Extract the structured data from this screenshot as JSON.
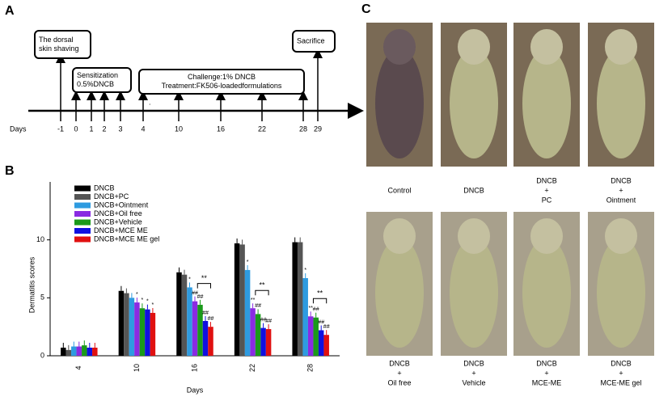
{
  "panels": {
    "a": "A",
    "b": "B",
    "c": "C"
  },
  "timeline": {
    "axis_label": "Days",
    "days": [
      "-1",
      "0",
      "1",
      "2",
      "3",
      "4",
      "10",
      "16",
      "22",
      "28",
      "29"
    ],
    "boxes": [
      [
        "The dorsal",
        "skin shaving"
      ],
      [
        "Sensitization",
        "0.5%DNCB"
      ],
      [
        "Challenge:1% DNCB",
        "Treatment:FK506-loadedformulations"
      ],
      [
        "Sacrifice"
      ]
    ],
    "dot": "."
  },
  "chart_data": {
    "type": "bar",
    "xlabel": "Days",
    "ylabel": "Dermatitis scores",
    "categories": [
      "4",
      "10",
      "16",
      "22",
      "28"
    ],
    "ylim": [
      0,
      15
    ],
    "yticks": [
      0,
      5,
      10
    ],
    "series": [
      {
        "name": "DNCB",
        "color": "#000000",
        "values": [
          0.7,
          5.6,
          7.2,
          9.7,
          9.8
        ],
        "marks": [
          null,
          null,
          null,
          null,
          null
        ]
      },
      {
        "name": "DNCB+PC",
        "color": "#555555",
        "values": [
          0.5,
          5.4,
          7.0,
          9.6,
          9.8
        ],
        "marks": [
          null,
          null,
          null,
          null,
          null
        ]
      },
      {
        "name": "DNCB+Ointment",
        "color": "#2e9be0",
        "values": [
          0.8,
          5.0,
          5.9,
          7.4,
          6.7
        ],
        "marks": [
          null,
          null,
          "*",
          "*",
          "*"
        ]
      },
      {
        "name": "DNCB+Oil free",
        "color": "#8a2be2",
        "values": [
          0.8,
          4.6,
          4.7,
          4.1,
          3.4
        ],
        "marks": [
          null,
          "*",
          "##",
          "**",
          "**"
        ]
      },
      {
        "name": "DNCB+Vehicle",
        "color": "#1a9a1a",
        "values": [
          0.9,
          4.1,
          4.4,
          3.6,
          3.3
        ],
        "marks": [
          null,
          "*",
          "##",
          "##",
          "##"
        ]
      },
      {
        "name": "DNCB+MCE ME",
        "color": "#1010e0",
        "values": [
          0.7,
          4.0,
          3.0,
          2.4,
          2.2
        ],
        "marks": [
          null,
          "*",
          "##",
          "##",
          "##"
        ]
      },
      {
        "name": "DNCB+MCE ME gel",
        "color": "#e01010",
        "values": [
          0.7,
          3.7,
          2.5,
          2.3,
          1.8
        ],
        "marks": [
          null,
          "*",
          "##",
          "##",
          "##"
        ]
      }
    ],
    "brackets": {
      "categories": [
        2,
        3,
        4
      ],
      "label": "**"
    }
  },
  "photos": [
    [
      "Control"
    ],
    [
      "DNCB"
    ],
    [
      "DNCB",
      "+",
      "PC"
    ],
    [
      "DNCB",
      "+",
      "Ointment"
    ],
    [
      "DNCB",
      "+",
      "Oil free"
    ],
    [
      "DNCB",
      "+",
      "Vehicle"
    ],
    [
      "DNCB",
      "+",
      "MCE-ME"
    ],
    [
      "DNCB",
      "+",
      "MCE-ME gel"
    ]
  ]
}
